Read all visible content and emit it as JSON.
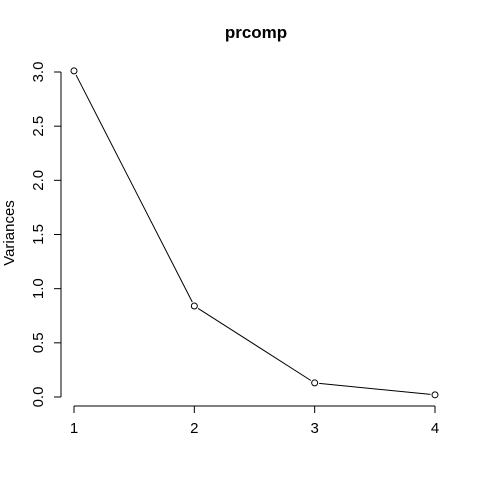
{
  "chart_data": {
    "type": "line",
    "title": "prcomp",
    "xlabel": "",
    "ylabel": "Variances",
    "x": [
      1,
      2,
      3,
      4
    ],
    "series": [
      {
        "values": [
          3.01,
          0.84,
          0.13,
          0.02
        ]
      }
    ],
    "x_ticks": [
      "1",
      "2",
      "3",
      "4"
    ],
    "y_ticks": [
      "0.0",
      "0.5",
      "1.0",
      "1.5",
      "2.0",
      "2.5",
      "3.0"
    ],
    "xlim": [
      1,
      4
    ],
    "ylim": [
      0,
      3
    ],
    "grid": false,
    "markers": "open-circle",
    "line_color": "#000000"
  }
}
